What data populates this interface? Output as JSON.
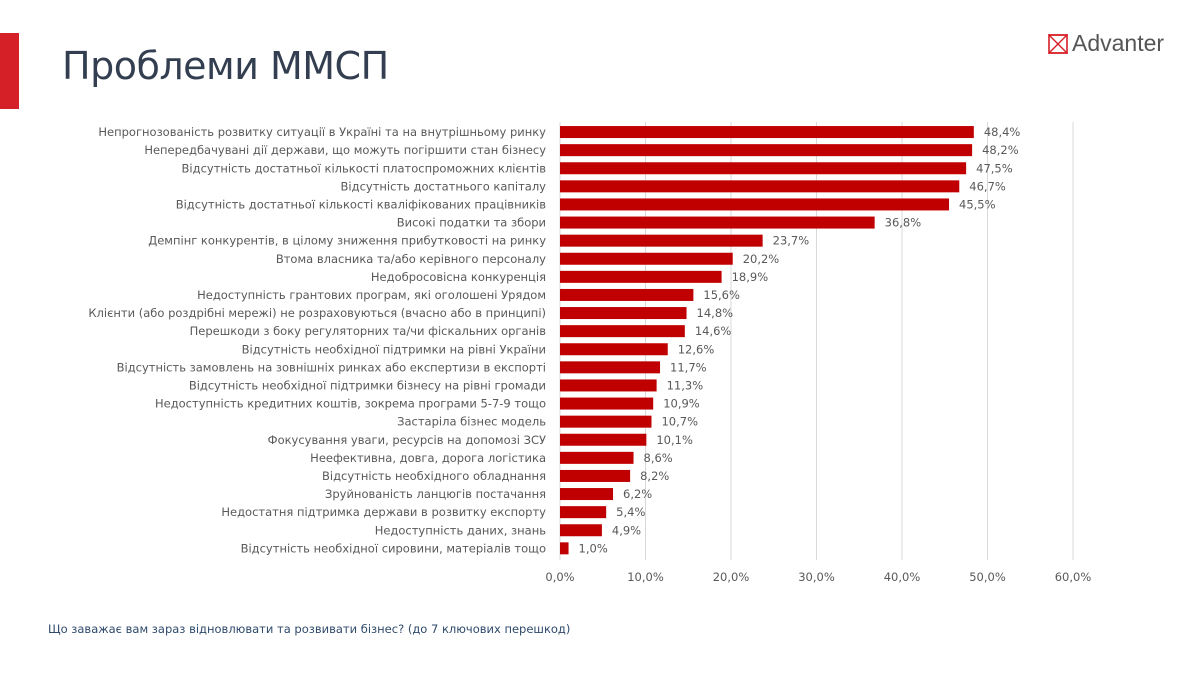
{
  "header": {
    "title": "Проблеми ММСП",
    "logo_text": "Advanter"
  },
  "colors": {
    "accent": "#d62027",
    "bar": "#c00000",
    "grid": "#d9d9d9",
    "title": "#333f50"
  },
  "footnote": "Що заважає вам зараз відновлювати та розвивати бізнес? (до 7 ключових перешкод)",
  "chart_data": {
    "type": "bar",
    "orientation": "horizontal",
    "categories": [
      "Непрогнозованість розвитку ситуації в Україні та на внутрішньому ринку",
      "Непередбачувані дії держави, що можуть погіршити стан бізнесу",
      "Відсутність достатньої кількості платоспроможних клієнтів",
      "Відсутність достатнього капіталу",
      "Відсутність достатньої кількості кваліфікованих працівників",
      "Високі податки та збори",
      "Демпінг конкурентів, в цілому зниження прибутковості на ринку",
      "Втома власника та/або керівного персоналу",
      "Недобросовісна конкуренція",
      "Недоступність грантових програм, які оголошені Урядом",
      "Клієнти (або роздрібні мережі) не розраховуються (вчасно або в принципі)",
      "Перешкоди з боку регуляторних та/чи фіскальних органів",
      "Відсутність необхідної підтримки на рівні України",
      "Відсутність замовлень на зовнішніх ринках або експертизи в експорті",
      "Відсутність необхідної підтримки бізнесу на рівні громади",
      "Недоступність кредитних коштів, зокрема програми 5-7-9 тощо",
      "Застаріла бізнес модель",
      "Фокусування уваги, ресурсів на допомозі ЗСУ",
      "Неефективна, довга, дорога логістика",
      "Відсутність необхідного обладнання",
      "Зруйнованість ланцюгів постачання",
      "Недостатня підтримка держави в розвитку експорту",
      "Недоступність даних, знань",
      "Відсутність необхідної сировини, матеріалів тощо"
    ],
    "values": [
      48.4,
      48.2,
      47.5,
      46.7,
      45.5,
      36.8,
      23.7,
      20.2,
      18.9,
      15.6,
      14.8,
      14.6,
      12.6,
      11.7,
      11.3,
      10.9,
      10.7,
      10.1,
      8.6,
      8.2,
      6.2,
      5.4,
      4.9,
      1.0
    ],
    "value_labels": [
      "48,4%",
      "48,2%",
      "47,5%",
      "46,7%",
      "45,5%",
      "36,8%",
      "23,7%",
      "20,2%",
      "18,9%",
      "15,6%",
      "14,8%",
      "14,6%",
      "12,6%",
      "11,7%",
      "11,3%",
      "10,9%",
      "10,7%",
      "10,1%",
      "8,6%",
      "8,2%",
      "6,2%",
      "5,4%",
      "4,9%",
      "1,0%"
    ],
    "xticks": [
      "0,0%",
      "10,0%",
      "20,0%",
      "30,0%",
      "40,0%",
      "50,0%",
      "60,0%"
    ],
    "xlim": [
      0,
      60
    ],
    "grid": true,
    "legend": "none",
    "title": "",
    "xlabel": "",
    "ylabel": ""
  }
}
